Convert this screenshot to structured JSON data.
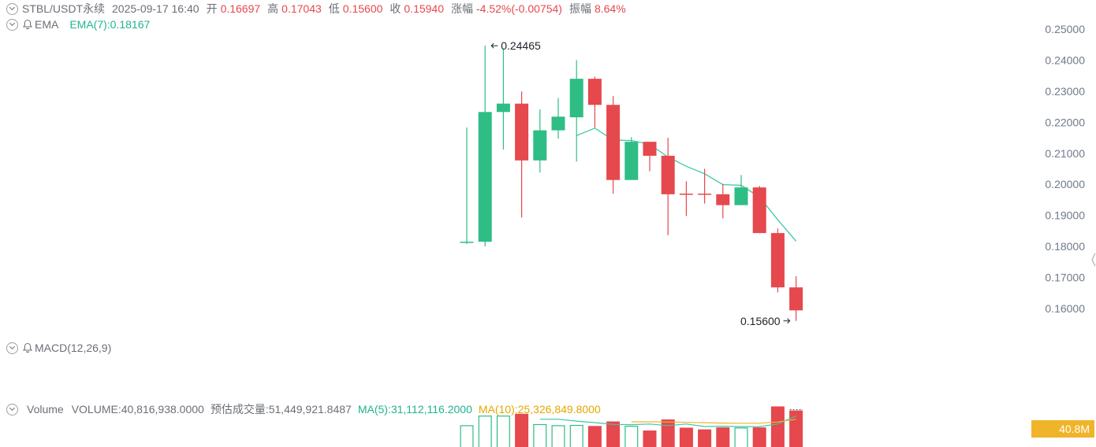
{
  "header": {
    "symbol": "STBL/USDT永续",
    "datetime": "2025-09-17 16:40",
    "open_label": "开",
    "open_value": "0.16697",
    "high_label": "高",
    "high_value": "0.17043",
    "low_label": "低",
    "low_value": "0.15600",
    "close_label": "收",
    "close_value": "0.15940",
    "change_label": "涨幅",
    "change_value": "-4.52%(-0.00754)",
    "amplitude_label": "振幅",
    "amplitude_value": "8.64%"
  },
  "ema_row": {
    "name": "EMA",
    "value_text": "EMA(7):0.18167"
  },
  "macd_row": {
    "name": "MACD(12,26,9)"
  },
  "volume_row": {
    "name": "Volume",
    "volume_text": "VOLUME:40,816,938.0000",
    "estimate_text": "预估成交量:51,449,921.8487",
    "ma5_text": "MA(5):31,112,116.2000",
    "ma10_text": "MA(10):25,326,849.8000",
    "badge": "40.8M"
  },
  "colors": {
    "up": "#2ebd85",
    "down": "#e5484d",
    "ema": "#3cc8a8",
    "ma5": "#3cc8a8",
    "ma10": "#f0b429",
    "badge": "#f0b429"
  },
  "chart_data": {
    "type": "candlestick",
    "series_name": "STBL/USDT永续",
    "y_ticks": [
      "0.25000",
      "0.24000",
      "0.23000",
      "0.22000",
      "0.21000",
      "0.20000",
      "0.19000",
      "0.18000",
      "0.17000",
      "0.16000"
    ],
    "ylim": [
      0.1545,
      0.2563
    ],
    "candles": [
      {
        "o": 0.1813,
        "h": 0.2183,
        "l": 0.1808,
        "c": 0.1815
      },
      {
        "o": 0.1815,
        "h": 0.2447,
        "l": 0.18,
        "c": 0.2233
      },
      {
        "o": 0.2233,
        "h": 0.2438,
        "l": 0.2112,
        "c": 0.226
      },
      {
        "o": 0.226,
        "h": 0.2299,
        "l": 0.1893,
        "c": 0.2077
      },
      {
        "o": 0.2077,
        "h": 0.2241,
        "l": 0.2038,
        "c": 0.2174
      },
      {
        "o": 0.2174,
        "h": 0.2278,
        "l": 0.2147,
        "c": 0.2218
      },
      {
        "o": 0.2216,
        "h": 0.24,
        "l": 0.2073,
        "c": 0.234
      },
      {
        "o": 0.234,
        "h": 0.2347,
        "l": 0.2183,
        "c": 0.2256
      },
      {
        "o": 0.2256,
        "h": 0.2284,
        "l": 0.197,
        "c": 0.2014
      },
      {
        "o": 0.2014,
        "h": 0.2152,
        "l": 0.2014,
        "c": 0.2137
      },
      {
        "o": 0.2137,
        "h": 0.2137,
        "l": 0.2042,
        "c": 0.2092
      },
      {
        "o": 0.2092,
        "h": 0.215,
        "l": 0.1836,
        "c": 0.1968
      },
      {
        "o": 0.197,
        "h": 0.201,
        "l": 0.1898,
        "c": 0.1968
      },
      {
        "o": 0.197,
        "h": 0.205,
        "l": 0.1938,
        "c": 0.1968
      },
      {
        "o": 0.1968,
        "h": 0.2001,
        "l": 0.189,
        "c": 0.1933
      },
      {
        "o": 0.1933,
        "h": 0.203,
        "l": 0.1933,
        "c": 0.199
      },
      {
        "o": 0.199,
        "h": 0.1995,
        "l": 0.1843,
        "c": 0.1843
      },
      {
        "o": 0.1843,
        "h": 0.1858,
        "l": 0.1652,
        "c": 0.1668
      },
      {
        "o": 0.1668,
        "h": 0.1704,
        "l": 0.156,
        "c": 0.1594
      }
    ],
    "ema7": [
      null,
      null,
      null,
      null,
      null,
      null,
      0.2157,
      0.2181,
      0.2143,
      0.2141,
      0.2129,
      0.2088,
      0.2058,
      0.2034,
      0.1999,
      0.1997,
      0.1959,
      0.1886,
      0.1817
    ],
    "annotations": [
      {
        "label": "0.24465",
        "value": 0.24465,
        "candle_index": 1,
        "side": "left"
      },
      {
        "label": "0.15600",
        "value": 0.156,
        "candle_index": 18,
        "side": "right"
      }
    ],
    "volume_unit": "M",
    "volume": [
      14.0,
      31.0,
      31.0,
      35.0,
      16.0,
      14.0,
      14.5,
      13.5,
      21.5,
      13.0,
      5.5,
      25.0,
      10.5,
      7.5,
      11.0,
      10.0,
      11.0,
      48.0,
      40.8
    ],
    "volume_up": [
      true,
      true,
      true,
      false,
      true,
      true,
      true,
      false,
      false,
      true,
      false,
      false,
      false,
      false,
      false,
      true,
      false,
      false,
      false
    ],
    "ma5_volume": [
      null,
      null,
      null,
      null,
      25.4,
      25.4,
      22.1,
      19.5,
      16.3,
      15.9,
      16.9,
      14.2,
      16.9,
      12.5,
      13.1,
      12.4,
      12.4,
      17.1,
      31.1
    ],
    "ma10_volume": [
      null,
      null,
      null,
      null,
      null,
      null,
      null,
      null,
      null,
      20.8,
      20.8,
      20.6,
      19.8,
      19.3,
      18.6,
      18.3,
      18.3,
      20.5,
      25.3
    ]
  }
}
